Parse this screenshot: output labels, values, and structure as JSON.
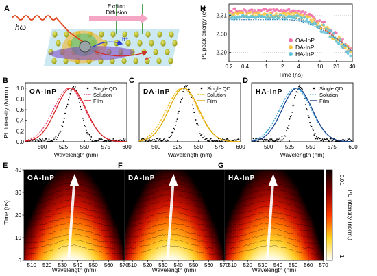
{
  "panel_letters": {
    "A": "A",
    "B": "B",
    "C": "C",
    "D": "D",
    "E": "E",
    "F": "F",
    "G": "G",
    "H": "H"
  },
  "schematic": {
    "photon_label": "ħω",
    "arrow_text_1": "Exciton",
    "arrow_text_2": "Diffusion",
    "carrier_labels": [
      "h⁺",
      "e⁻"
    ],
    "colors": {
      "film": "#c8e6ee",
      "qd": "#b5b81c",
      "arrow": "#f4a6c4",
      "photon": "#e0441a"
    }
  },
  "chart_data": [
    {
      "id": "B",
      "type": "line",
      "inset_label": "OA-InP",
      "xlabel": "Wavelength (nm)",
      "ylabel": "PL Intensity (Norm.)",
      "xlim": [
        480,
        600
      ],
      "ylim": [
        0,
        1.1
      ],
      "xticks": [
        500,
        525,
        550,
        575,
        600
      ],
      "yticks": [
        0.0,
        0.2,
        0.4,
        0.6,
        0.8,
        1.0
      ],
      "legend_position": "top-right",
      "series": [
        {
          "name": "Single QD",
          "style": "scatter",
          "color": "#000000",
          "peak": 537,
          "fwhm": 20
        },
        {
          "name": "Solution",
          "style": "dashed",
          "color": "#e43b6b",
          "peak": 532,
          "fwhm": 44
        },
        {
          "name": "Film",
          "style": "solid",
          "color": "#d62020",
          "peak": 534,
          "fwhm": 42
        }
      ]
    },
    {
      "id": "C",
      "type": "line",
      "inset_label": "DA-InP",
      "xlabel": "Wavelength (nm)",
      "ylabel": "",
      "xlim": [
        480,
        600
      ],
      "ylim": [
        0,
        1.1
      ],
      "xticks": [
        500,
        525,
        550,
        575,
        600
      ],
      "legend_position": "top-right",
      "series": [
        {
          "name": "Single QD",
          "style": "scatter",
          "color": "#000000",
          "peak": 536,
          "fwhm": 20
        },
        {
          "name": "Solution",
          "style": "dashed",
          "color": "#f2b70e",
          "peak": 531,
          "fwhm": 44
        },
        {
          "name": "Film",
          "style": "solid",
          "color": "#e0a800",
          "peak": 533,
          "fwhm": 42
        }
      ]
    },
    {
      "id": "D",
      "type": "line",
      "inset_label": "HA-InP",
      "xlabel": "Wavelength (nm)",
      "ylabel": "",
      "xlim": [
        480,
        600
      ],
      "ylim": [
        0,
        1.1
      ],
      "xticks": [
        500,
        525,
        550,
        575,
        600
      ],
      "legend_position": "top-right",
      "series": [
        {
          "name": "Single QD",
          "style": "scatter",
          "color": "#000000",
          "peak": 537,
          "fwhm": 20
        },
        {
          "name": "Solution",
          "style": "dashed",
          "color": "#2a9fd6",
          "peak": 532,
          "fwhm": 44
        },
        {
          "name": "Film",
          "style": "solid",
          "color": "#1a3f8c",
          "peak": 534,
          "fwhm": 42
        }
      ]
    },
    {
      "id": "E",
      "type": "heatmap",
      "inset_label": "OA-InP",
      "xlabel": "Wavelength (nm)",
      "ylabel": "Time (ns)",
      "xlim": [
        505,
        570
      ],
      "ylim": [
        0,
        40
      ],
      "xticks": [
        510,
        520,
        530,
        540,
        550,
        560,
        570
      ],
      "yticks": [
        0,
        10,
        20,
        30,
        40
      ],
      "center": 536
    },
    {
      "id": "F",
      "type": "heatmap",
      "inset_label": "DA-InP",
      "xlabel": "Wavelength (nm)",
      "ylabel": "",
      "xlim": [
        505,
        570
      ],
      "ylim": [
        0,
        40
      ],
      "xticks": [
        510,
        520,
        530,
        540,
        550,
        560,
        570
      ],
      "center": 535
    },
    {
      "id": "G",
      "type": "heatmap",
      "inset_label": "HA-InP",
      "xlabel": "Wavelength (nm)",
      "ylabel": "",
      "xlim": [
        505,
        570
      ],
      "ylim": [
        0,
        40
      ],
      "xticks": [
        510,
        520,
        530,
        540,
        550,
        560,
        570
      ],
      "center": 535,
      "colorbar": {
        "label": "PL Intensity (norm.)",
        "ticks": [
          "0.01",
          "1"
        ],
        "scale": "log"
      }
    },
    {
      "id": "H",
      "type": "scatter",
      "xlabel": "Time (ns)",
      "ylabel": "PL peak energy (eV)",
      "xscale": "log",
      "xlim": [
        0.2,
        40
      ],
      "ylim": [
        2.285,
        2.316
      ],
      "xticks": [
        "0.2",
        "0.4",
        "1",
        "2",
        "4",
        "10",
        "20",
        "40"
      ],
      "yticks": [
        2.29,
        2.3,
        2.31
      ],
      "legend_position": "bottom-left",
      "series": [
        {
          "name": "OA-InP",
          "color": "#f06fa8",
          "e0": 2.3125,
          "decay": 2.3086
        },
        {
          "name": "DA-InP",
          "color": "#f5c542",
          "e0": 2.3105,
          "decay": 2.309
        },
        {
          "name": "HA-InP",
          "color": "#5fc3d9",
          "e0": 2.309,
          "decay": 2.3076
        }
      ]
    }
  ]
}
